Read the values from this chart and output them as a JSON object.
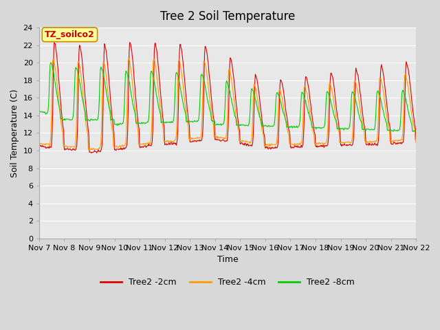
{
  "title": "Tree 2 Soil Temperature",
  "xlabel": "Time",
  "ylabel": "Soil Temperature (C)",
  "annotation": "TZ_soilco2",
  "ylim": [
    0,
    24
  ],
  "yticks": [
    0,
    2,
    4,
    6,
    8,
    10,
    12,
    14,
    16,
    18,
    20,
    22,
    24
  ],
  "xtick_labels": [
    "Nov 7",
    "Nov 8",
    "Nov 9",
    "Nov 10",
    "Nov 11",
    "Nov 12",
    "Nov 13",
    "Nov 14",
    "Nov 15",
    "Nov 16",
    "Nov 17",
    "Nov 18",
    "Nov 19",
    "Nov 20",
    "Nov 21",
    "Nov 22"
  ],
  "legend_labels": [
    "Tree2 -2cm",
    "Tree2 -4cm",
    "Tree2 -8cm"
  ],
  "line_colors": [
    "#dd0000",
    "#ff9900",
    "#00cc00"
  ],
  "fig_bg_color": "#d8d8d8",
  "plot_bg_color": "#e8e8e8",
  "annotation_bg": "#ffff99",
  "annotation_border": "#cc8800",
  "title_fontsize": 12,
  "axis_label_fontsize": 9,
  "tick_fontsize": 8,
  "legend_fontsize": 9,
  "n_days": 15,
  "pts_per_day": 48
}
